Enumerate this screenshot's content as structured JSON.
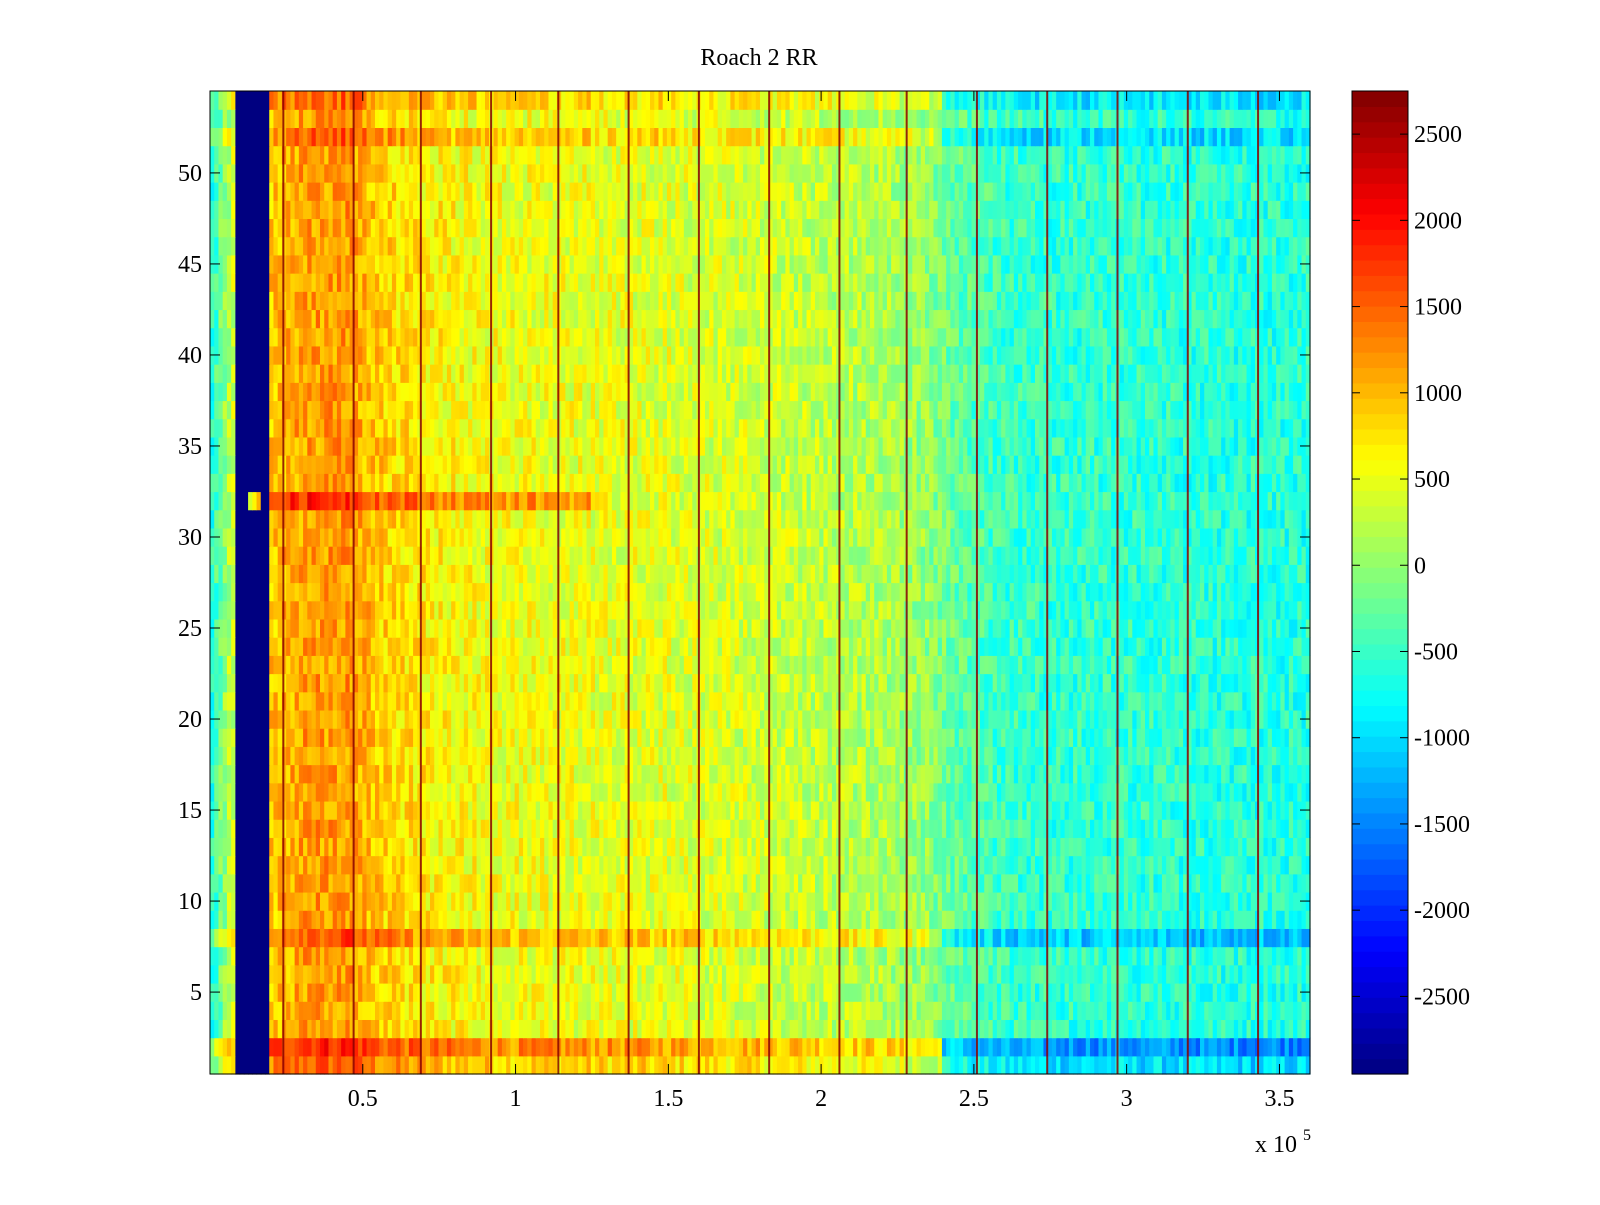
{
  "chart_data": {
    "type": "heatmap",
    "title": "Roach 2 RR",
    "xlabel": "",
    "ylabel": "",
    "x_multiplier_label": "x 10",
    "x_multiplier_exponent": "5",
    "xlim": [
      0,
      3.6
    ],
    "ylim": [
      0.5,
      54.5
    ],
    "x_ticks": [
      0.5,
      1,
      1.5,
      2,
      2.5,
      3,
      3.5
    ],
    "x_tick_labels": [
      "0.5",
      "1",
      "1.5",
      "2",
      "2.5",
      "3",
      "3.5"
    ],
    "y_ticks": [
      5,
      10,
      15,
      20,
      25,
      30,
      35,
      40,
      45,
      50
    ],
    "y_tick_labels": [
      "5",
      "10",
      "15",
      "20",
      "25",
      "30",
      "35",
      "40",
      "45",
      "50"
    ],
    "rows": 54,
    "colormap": "jet",
    "colorbar": {
      "clim": [
        -2950,
        2750
      ],
      "ticks": [
        -2500,
        -2000,
        -1500,
        -1000,
        -500,
        0,
        500,
        1000,
        1500,
        2000,
        2500
      ],
      "tick_labels": [
        "-2500",
        "-2000",
        "-1500",
        "-1000",
        "-500",
        "0",
        "500",
        "1000",
        "1500",
        "2000",
        "2500"
      ]
    },
    "column_profile": {
      "x": [
        0.0,
        0.07,
        0.2,
        0.3,
        0.45,
        0.55,
        0.7,
        0.9,
        1.2,
        1.5,
        1.8,
        2.0,
        2.2,
        2.35,
        2.45,
        2.6,
        2.8,
        3.0,
        3.3,
        3.6
      ],
      "mean_value": [
        -700,
        300,
        900,
        1150,
        1200,
        900,
        700,
        550,
        500,
        450,
        350,
        250,
        150,
        0,
        -300,
        -500,
        -550,
        -550,
        -600,
        -600
      ]
    },
    "blank_band_x": [
      0.08,
      0.2
    ],
    "blank_band_value": -2950,
    "row_offsets": [
      {
        "row": 1,
        "offset": 350
      },
      {
        "row": 2,
        "offset": 700
      },
      {
        "row": 8,
        "offset": 450
      },
      {
        "row": 32,
        "offset": 700,
        "x_range": [
          0.2,
          1.25
        ]
      },
      {
        "row": 52,
        "offset": 350
      },
      {
        "row": 54,
        "offset": 300
      }
    ],
    "vertical_stripes_x": [
      0.24,
      0.47,
      0.69,
      0.92,
      1.14,
      1.37,
      1.6,
      1.83,
      2.06,
      2.28,
      2.51,
      2.74,
      2.97,
      3.2,
      3.43
    ],
    "stripe_value": 2700
  }
}
